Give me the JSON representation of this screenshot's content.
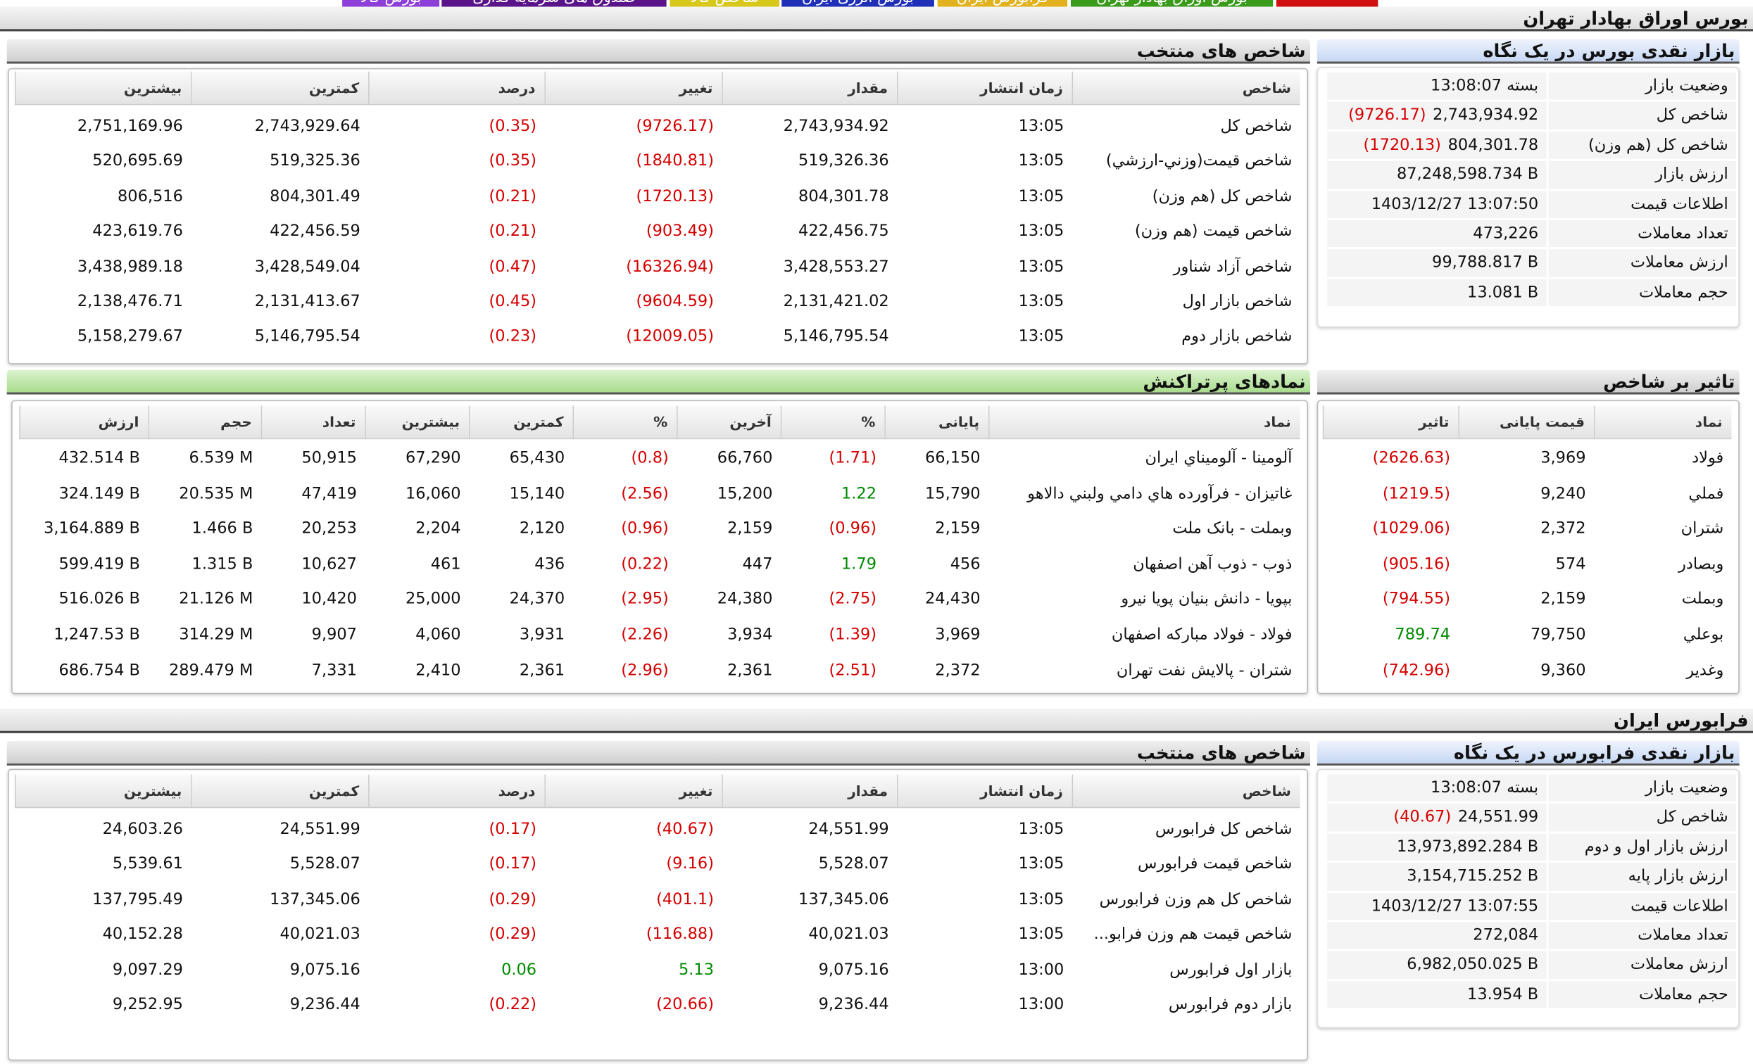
{
  "tabs": [
    "بورس کالا",
    "صندوق های سرمایه گذاری",
    "شاخص کالا",
    "بورس انرژی ایران",
    "فرابورس ایران",
    "بورس اوراق بهادار تهران"
  ],
  "tse": {
    "title": "بورس اوراق بهادار تهران",
    "overview": {
      "title": "بازار نقدی بورس در یک نگاه",
      "rows": [
        [
          "وضعیت بازار",
          "بسته 13:08:07"
        ],
        [
          "شاخص کل",
          "2,743,934.92",
          "(9726.17)"
        ],
        [
          "شاخص کل (هم وزن)",
          "804,301.78",
          "(1720.13)"
        ],
        [
          "ارزش بازار",
          "87,248,598.734 B"
        ],
        [
          "اطلاعات قیمت",
          "1403/12/27 13:07:50"
        ],
        [
          "تعداد معاملات",
          "473,226"
        ],
        [
          "ارزش معاملات",
          "99,788.817 B"
        ],
        [
          "حجم معاملات",
          "13.081 B"
        ]
      ]
    },
    "indices": {
      "title": "شاخص های منتخب",
      "columns": [
        "شاخص",
        "زمان انتشار",
        "مقدار",
        "تغییر",
        "درصد",
        "کمترین",
        "بیشترین"
      ],
      "rows": [
        [
          "شاخص کل",
          "13:05",
          "2,743,934.92",
          "(9726.17)",
          "(0.35)",
          "2,743,929.64",
          "2,751,169.96"
        ],
        [
          "شاخص قیمت(وزني-ارزشي)",
          "13:05",
          "519,326.36",
          "(1840.81)",
          "(0.35)",
          "519,325.36",
          "520,695.69"
        ],
        [
          "شاخص کل (هم وزن)",
          "13:05",
          "804,301.78",
          "(1720.13)",
          "(0.21)",
          "804,301.49",
          "806,516"
        ],
        [
          "شاخص قیمت (هم وزن)",
          "13:05",
          "422,456.75",
          "(903.49)",
          "(0.21)",
          "422,456.59",
          "423,619.76"
        ],
        [
          "شاخص آزاد شناور",
          "13:05",
          "3,428,553.27",
          "(16326.94)",
          "(0.47)",
          "3,428,549.04",
          "3,438,989.18"
        ],
        [
          "شاخص بازار اول",
          "13:05",
          "2,131,421.02",
          "(9604.59)",
          "(0.45)",
          "2,131,413.67",
          "2,138,476.71"
        ],
        [
          "شاخص بازار دوم",
          "13:05",
          "5,146,795.54",
          "(12009.05)",
          "(0.23)",
          "5,146,795.54",
          "5,158,279.67"
        ]
      ]
    },
    "impact": {
      "title": "تاثیر بر شاخص",
      "columns": [
        "نماد",
        "قیمت پایانی",
        "تاثیر"
      ],
      "rows": [
        [
          "فولاد",
          "3,969",
          "(2626.63)"
        ],
        [
          "فملي",
          "9,240",
          "(1219.5)"
        ],
        [
          "شتران",
          "2,372",
          "(1029.06)"
        ],
        [
          "وبصادر",
          "574",
          "(905.16)"
        ],
        [
          "وبملت",
          "2,159",
          "(794.55)"
        ],
        [
          "بوعلي",
          "79,750",
          "789.74"
        ],
        [
          "وغدير",
          "9,360",
          "(742.96)"
        ]
      ]
    },
    "active": {
      "title": "نمادهای پرتراکنش",
      "columns": [
        "نماد",
        "پایانی",
        "%",
        "آخرین",
        "%",
        "کمترین",
        "بیشترین",
        "تعداد",
        "حجم",
        "ارزش"
      ],
      "rows": [
        [
          "آلومينا - آلومیناي ايران",
          "66,150",
          "(1.71)",
          "66,760",
          "(0.8)",
          "65,430",
          "67,290",
          "50,915",
          "6.539 M",
          "432.514 B"
        ],
        [
          "غاتيزان - فرآورده هاي دامي ولبني دالاهو",
          "15,790",
          "1.22",
          "15,200",
          "(2.56)",
          "15,140",
          "16,060",
          "47,419",
          "20.535 M",
          "324.149 B"
        ],
        [
          "وبملت - بانک ملت",
          "2,159",
          "(0.96)",
          "2,159",
          "(0.96)",
          "2,120",
          "2,204",
          "20,253",
          "1.466 B",
          "3,164.889 B"
        ],
        [
          "ذوب - ذوب آهن اصفهان",
          "456",
          "1.79",
          "447",
          "(0.22)",
          "436",
          "461",
          "10,627",
          "1.315 B",
          "599.419 B"
        ],
        [
          "بپويا - دانش بنيان پويا نيرو",
          "24,430",
          "(2.75)",
          "24,380",
          "(2.95)",
          "24,370",
          "25,000",
          "10,420",
          "21.126 M",
          "516.026 B"
        ],
        [
          "فولاد - فولاد مباركه اصفهان",
          "3,969",
          "(1.39)",
          "3,934",
          "(2.26)",
          "3,931",
          "4,060",
          "9,907",
          "314.29 M",
          "1,247.53 B"
        ],
        [
          "شتران - پالايش نفت تهران",
          "2,372",
          "(2.51)",
          "2,361",
          "(2.96)",
          "2,361",
          "2,410",
          "7,331",
          "289.479 M",
          "686.754 B"
        ]
      ]
    }
  },
  "ifb": {
    "title": "فرابورس ایران",
    "overview": {
      "title": "بازار نقدی فرابورس در یک نگاه",
      "rows": [
        [
          "وضعیت بازار",
          "بسته 13:08:07"
        ],
        [
          "شاخص کل",
          "24,551.99",
          "(40.67)"
        ],
        [
          "ارزش بازار اول و دوم",
          "13,973,892.284 B"
        ],
        [
          "ارزش بازار پایه",
          "3,154,715.252 B"
        ],
        [
          "اطلاعات قیمت",
          "1403/12/27 13:07:55"
        ],
        [
          "تعداد معاملات",
          "272,084"
        ],
        [
          "ارزش معاملات",
          "6,982,050.025 B"
        ],
        [
          "حجم معاملات",
          "13.954 B"
        ]
      ]
    },
    "indices": {
      "title": "شاخص های منتخب",
      "columns": [
        "شاخص",
        "زمان انتشار",
        "مقدار",
        "تغییر",
        "درصد",
        "کمترین",
        "بیشترین"
      ],
      "rows": [
        [
          "شاخص کل فرابورس",
          "13:05",
          "24,551.99",
          "(40.67)",
          "(0.17)",
          "24,551.99",
          "24,603.26"
        ],
        [
          "شاخص قیمت فرابورس",
          "13:05",
          "5,528.07",
          "(9.16)",
          "(0.17)",
          "5,528.07",
          "5,539.61"
        ],
        [
          "شاخص کل هم وزن فرابورس",
          "13:05",
          "137,345.06",
          "(401.1)",
          "(0.29)",
          "137,345.06",
          "137,795.49"
        ],
        [
          "شاخص قیمت هم وزن فرابو...",
          "13:05",
          "40,021.03",
          "(116.88)",
          "(0.29)",
          "40,021.03",
          "40,152.28"
        ],
        [
          "بازار اول فرابورس",
          "13:00",
          "9,075.16",
          "5.13",
          "0.06",
          "9,075.16",
          "9,097.29"
        ],
        [
          "بازار دوم فرابورس",
          "13:00",
          "9,236.44",
          "(20.66)",
          "(0.22)",
          "9,236.44",
          "9,252.95"
        ]
      ]
    }
  }
}
